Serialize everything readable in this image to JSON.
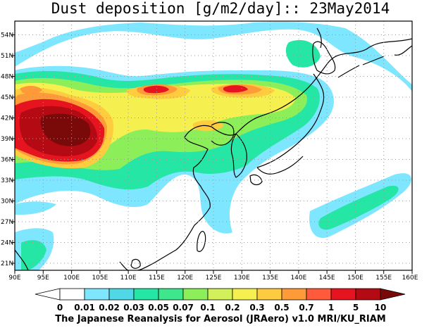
{
  "title": "Dust deposition [g/m2/day]:: 23May2014",
  "footer": "The Japanese Reanalysis for Aerosol (JRAero) v1.0 MRI/KU_RIAM",
  "map": {
    "lon_range": [
      90,
      160
    ],
    "lat_range": [
      19.5,
      55.5
    ],
    "lon_ticks": [
      "90E",
      "95E",
      "100E",
      "105E",
      "110E",
      "115E",
      "120E",
      "125E",
      "130E",
      "135E",
      "140E",
      "145E",
      "150E",
      "155E",
      "160E"
    ],
    "lat_ticks": [
      "21N",
      "24N",
      "27N",
      "30N",
      "33N",
      "36N",
      "39N",
      "42N",
      "45N",
      "48N",
      "51N",
      "54N"
    ],
    "grid": "dotted"
  },
  "colorbar": {
    "labels": [
      "0",
      "0.01",
      "0.02",
      "0.03",
      "0.05",
      "0.07",
      "0.1",
      "0.2",
      "0.3",
      "0.5",
      "0.7",
      "1",
      "5",
      "10"
    ],
    "colors": [
      "#ffffff",
      "#ffffff",
      "#7fe6ff",
      "#50d8e6",
      "#26e6a6",
      "#3ee68c",
      "#8cef5a",
      "#d2f05a",
      "#f5f050",
      "#ffcc40",
      "#ff9a38",
      "#ff5a3c",
      "#e6141e",
      "#b40a14",
      "#7a0a0a"
    ]
  },
  "level_colors": {
    "l1": "#7fe6ff",
    "l2": "#26e6a6",
    "l3": "#8cef5a",
    "l4": "#f5f050",
    "l5": "#ffcc40",
    "l6": "#ff9a38",
    "l7": "#e6141e",
    "l8": "#b40a14",
    "l9": "#7a0a0a"
  }
}
